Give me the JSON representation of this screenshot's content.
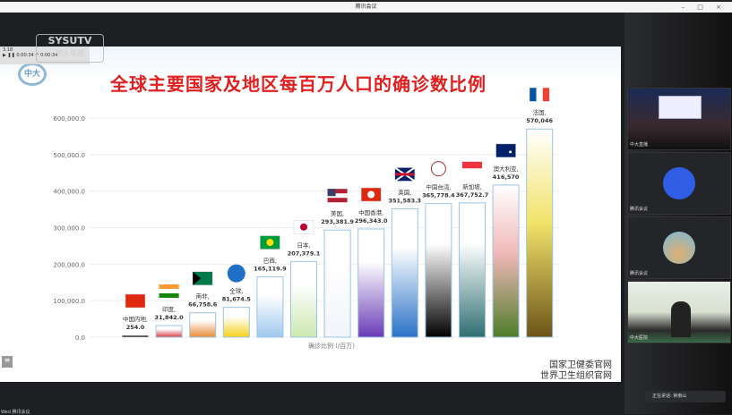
{
  "window": {
    "title": "腾讯会议"
  },
  "overlay": {
    "logo": "SYSUTV",
    "logo_sub": "中大电视",
    "player_time_elapsed": "0:00:34",
    "player_time_total": "0:00:34"
  },
  "slide": {
    "title": "全球主要国家及地区每百万人口的确诊数比例",
    "sources": [
      "国家卫健委官网",
      "世界卫生组织官网"
    ],
    "seal": "中大"
  },
  "chart_data": {
    "type": "bar",
    "title": "全球主要国家及地区每百万人口的确诊数比例",
    "xlabel": "确诊比例 (/百万)",
    "ylabel": "",
    "ylim": [
      0,
      600000
    ],
    "yticks": [
      "0.0",
      "100,000.0",
      "200,000.0",
      "300,000.0",
      "400,000.0",
      "500,000.0",
      "600,000.0"
    ],
    "grid": true,
    "categories": [
      "中国内地",
      "印度",
      "南非",
      "全球",
      "巴西",
      "日本",
      "美国",
      "中国香港",
      "英国",
      "中国台湾",
      "新加坡",
      "澳大利亚",
      "法国"
    ],
    "values": [
      254.0,
      31842.0,
      66758.6,
      81674.5,
      165119.9,
      207379.1,
      293381.9,
      296343.0,
      351583.3,
      365778.4,
      367752.7,
      416570,
      570046
    ],
    "data_labels": [
      "254.0",
      "31,842.0",
      "66,758.6",
      "81,674.5",
      "165,119.9",
      "207,379.1",
      "293,381.9",
      "296,343.0",
      "351,583.3",
      "365,778.4",
      "367,752.7",
      "416,570",
      "570,046"
    ],
    "flags": [
      "china-flag",
      "india-flag",
      "south-africa-flag",
      "globe",
      "brazil-flag",
      "japan-flag",
      "usa-flag",
      "hong-kong-flag",
      "uk-flag",
      "taiwan-flag",
      "singapore-flag",
      "australia-flag",
      "france-flag"
    ],
    "bar_colors": [
      [
        "#333",
        "#333"
      ],
      [
        "#ffffff",
        "#d8404a"
      ],
      [
        "#ffffff",
        "#e88a3a"
      ],
      [
        "#ffffff",
        "#f5d21a"
      ],
      [
        "#ffffff",
        "#9ec8ee"
      ],
      [
        "#ffffff",
        "#cde8b0"
      ],
      [
        "#ffffff",
        "#f2f4fa"
      ],
      [
        "#ffffff",
        "#6a3bb8"
      ],
      [
        "#ffffff",
        "#2a72c8"
      ],
      [
        "#ffffff",
        "#000000"
      ],
      [
        "#ffffff",
        "#2f6f73"
      ],
      [
        "#ffffff",
        "#f0b8b8",
        "#4f7d2a"
      ],
      [
        "#ffffff",
        "#f2e36a",
        "#6b5418"
      ]
    ]
  },
  "participants": [
    {
      "name": "中大直播",
      "type": "video-auditorium"
    },
    {
      "name": "腾讯会议",
      "type": "avatar",
      "color": "#2f5de6"
    },
    {
      "name": "腾讯会议",
      "type": "avatar-photo"
    },
    {
      "name": "中大医院",
      "type": "video-speaker"
    }
  ],
  "status": {
    "speaking": "正在讲话: 钟南山",
    "bottom_label": "Wed 腾讯会议"
  }
}
